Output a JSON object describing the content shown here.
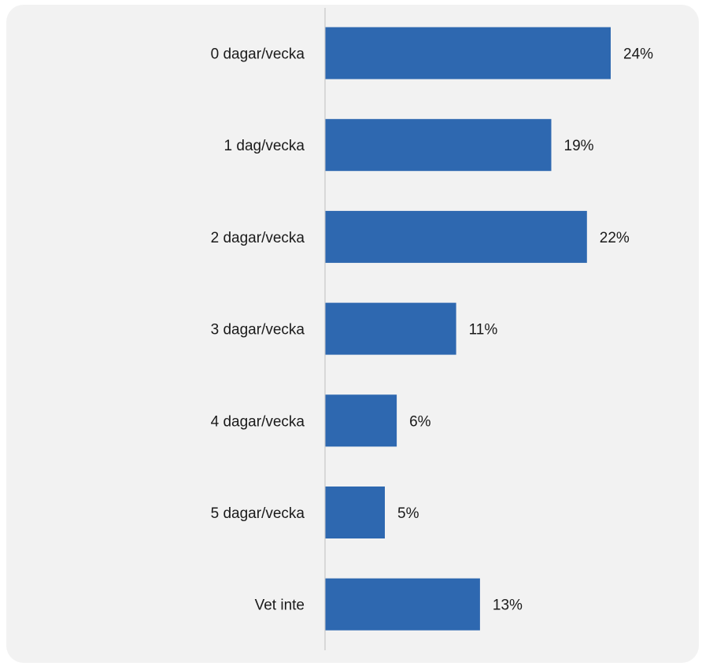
{
  "chart_data": {
    "type": "bar",
    "orientation": "horizontal",
    "categories": [
      "0 dagar/vecka",
      "1 dag/vecka",
      "2 dagar/vecka",
      "3 dagar/vecka",
      "4 dagar/vecka",
      "5 dagar/vecka",
      "Vet inte"
    ],
    "values": [
      24,
      19,
      22,
      11,
      6,
      5,
      13
    ],
    "value_labels": [
      "24%",
      "19%",
      "22%",
      "11%",
      "6%",
      "5%",
      "13%"
    ],
    "title": "",
    "xlabel": "",
    "ylabel": "",
    "xlim": [
      0,
      30
    ],
    "grid": false,
    "legend": "none",
    "colors": {
      "bar": "#2e68b0",
      "axis": "#d0d0d0",
      "background": "#f2f2f2"
    }
  }
}
